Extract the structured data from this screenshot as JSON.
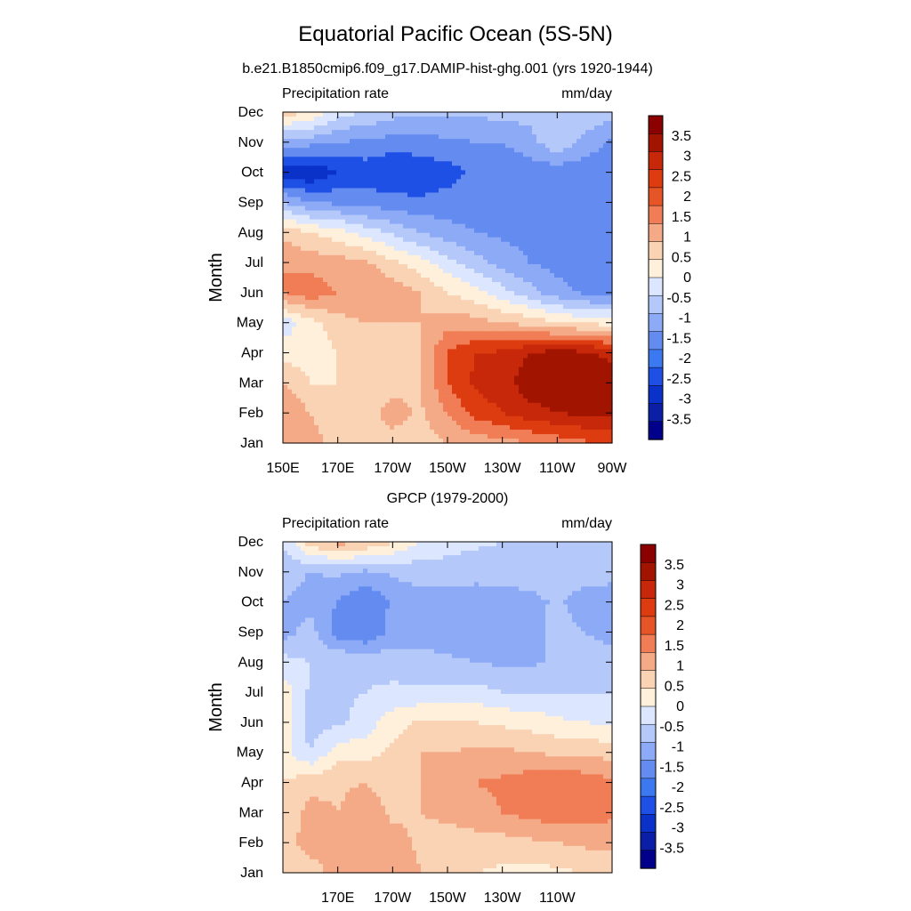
{
  "figure": {
    "title": "Equatorial Pacific Ocean (5S-5N)"
  },
  "chart_data": [
    {
      "type": "heatmap",
      "title": "b.e21.B1850cmip6.f09_g17.DAMIP-hist-ghg.001 (yrs 1920-1944)",
      "left_label": "Precipitation rate",
      "right_label": "mm/day",
      "xlabel": "",
      "ylabel": "Month",
      "x_tick_labels": [
        "150E",
        "170E",
        "170W",
        "150W",
        "130W",
        "110W",
        "90W"
      ],
      "x_values": [
        150,
        170,
        190,
        210,
        230,
        250,
        270
      ],
      "xlim": [
        150,
        270
      ],
      "y_tick_labels": [
        "Jan",
        "Feb",
        "Mar",
        "Apr",
        "May",
        "Jun",
        "Jul",
        "Aug",
        "Sep",
        "Oct",
        "Nov",
        "Dec"
      ],
      "ylim": [
        1,
        12
      ],
      "colorbar": {
        "levels": [
          -3.5,
          -3,
          -2.5,
          -2,
          -1.5,
          -1,
          -0.5,
          0,
          0.5,
          1,
          1.5,
          2,
          2.5,
          3,
          3.5
        ],
        "labels": [
          "3.5",
          "3",
          "2.5",
          "2",
          "1.5",
          "1",
          "0.5",
          "0",
          "-0.5",
          "-1",
          "-1.5",
          "-2",
          "-2.5",
          "-3",
          "-3.5"
        ]
      },
      "z": [
        [
          1.3,
          1.2,
          0.8,
          0.7,
          0.8,
          0.8,
          1.0,
          1.2,
          1.3,
          1.5,
          1.7,
          1.9,
          2.0
        ],
        [
          1.5,
          1.0,
          0.7,
          0.8,
          1.2,
          0.9,
          1.5,
          2.2,
          2.5,
          2.8,
          3.0,
          3.1,
          3.2
        ],
        [
          1.0,
          0.5,
          0.5,
          0.6,
          0.8,
          1.0,
          2.0,
          2.6,
          2.8,
          3.3,
          3.4,
          3.5,
          3.4
        ],
        [
          0.3,
          0.2,
          0.5,
          0.6,
          0.8,
          1.0,
          2.0,
          2.5,
          2.6,
          3.0,
          3.2,
          3.1,
          2.8
        ],
        [
          -0.3,
          0.3,
          0.8,
          1.0,
          1.0,
          1.0,
          1.3,
          1.2,
          1.0,
          0.8,
          0.5,
          0.4,
          0.3
        ],
        [
          1.5,
          1.8,
          1.5,
          1.5,
          1.3,
          1.0,
          0.5,
          0.2,
          -0.3,
          -0.8,
          -1.3,
          -1.6,
          -1.8
        ],
        [
          1.5,
          1.3,
          1.2,
          1.1,
          0.6,
          0.2,
          -0.3,
          -0.8,
          -1.2,
          -1.5,
          -1.7,
          -1.8,
          -1.8
        ],
        [
          0.8,
          0.5,
          0.2,
          -0.2,
          -0.6,
          -1.0,
          -1.3,
          -1.5,
          -1.6,
          -1.7,
          -1.7,
          -1.8,
          -1.7
        ],
        [
          -1.0,
          -1.5,
          -1.6,
          -1.7,
          -1.8,
          -1.9,
          -1.8,
          -1.7,
          -1.7,
          -1.7,
          -1.7,
          -1.7,
          -1.7
        ],
        [
          -2.8,
          -3.0,
          -2.5,
          -2.3,
          -2.5,
          -2.4,
          -2.2,
          -1.9,
          -1.8,
          -1.8,
          -1.8,
          -1.8,
          -1.8
        ],
        [
          -1.2,
          -1.3,
          -1.5,
          -1.6,
          -1.7,
          -1.7,
          -1.6,
          -1.5,
          -1.5,
          -1.2,
          -0.6,
          -1.2,
          -1.6
        ],
        [
          0.8,
          0.5,
          -0.3,
          -0.5,
          -0.8,
          -0.9,
          -0.9,
          -0.9,
          -0.8,
          -0.8,
          -0.5,
          -0.5,
          -0.8
        ]
      ]
    },
    {
      "type": "heatmap",
      "title": "GPCP (1979-2000)",
      "left_label": "Precipitation rate",
      "right_label": "mm/day",
      "xlabel": "",
      "ylabel": "Month",
      "x_tick_labels": [
        "170E",
        "170W",
        "150W",
        "130W",
        "110W"
      ],
      "x_values": [
        170,
        190,
        210,
        230,
        250
      ],
      "xlim": [
        150,
        270
      ],
      "y_tick_labels": [
        "Jan",
        "Feb",
        "Mar",
        "Apr",
        "May",
        "Jun",
        "Jul",
        "Aug",
        "Sep",
        "Oct",
        "Nov",
        "Dec"
      ],
      "ylim": [
        1,
        12
      ],
      "colorbar": {
        "levels": [
          -3.5,
          -3,
          -2.5,
          -2,
          -1.5,
          -1,
          -0.5,
          0,
          0.5,
          1,
          1.5,
          2,
          2.5,
          3,
          3.5
        ],
        "labels": [
          "3.5",
          "3",
          "2.5",
          "2",
          "1.5",
          "1",
          "0.5",
          "0",
          "-0.5",
          "-1",
          "-1.5",
          "-2",
          "-2.5",
          "-3",
          "-3.5"
        ]
      },
      "z": [
        [
          0.7,
          0.8,
          1.2,
          1.5,
          1.5,
          1.0,
          0.6,
          0.5,
          0.4,
          0.3,
          0.4,
          0.5,
          0.6
        ],
        [
          0.8,
          1.2,
          1.0,
          1.4,
          1.2,
          0.9,
          0.8,
          0.8,
          0.8,
          0.9,
          1.0,
          1.1,
          1.2
        ],
        [
          0.6,
          1.2,
          1.0,
          1.3,
          0.9,
          1.0,
          1.1,
          1.3,
          1.5,
          1.7,
          1.8,
          1.8,
          1.6
        ],
        [
          0.5,
          0.8,
          0.9,
          1.0,
          0.8,
          1.0,
          1.3,
          1.5,
          1.6,
          1.8,
          1.9,
          1.8,
          1.6
        ],
        [
          0.2,
          -0.5,
          0.3,
          0.3,
          0.6,
          1.0,
          1.0,
          1.1,
          1.1,
          1.0,
          0.9,
          0.9,
          0.8
        ],
        [
          0.4,
          -0.8,
          -0.6,
          -0.3,
          0.3,
          0.6,
          0.6,
          0.5,
          0.4,
          0.3,
          0.1,
          0.0,
          -0.1
        ],
        [
          0.3,
          -0.6,
          -0.6,
          -0.5,
          -0.4,
          -0.4,
          -0.4,
          -0.3,
          -0.5,
          -0.5,
          -0.5,
          -0.5,
          -0.5
        ],
        [
          -0.3,
          -0.5,
          -0.5,
          -0.6,
          -0.7,
          -0.8,
          -0.9,
          -1.0,
          -1.1,
          -1.1,
          -0.9,
          -0.8,
          -0.9
        ],
        [
          -1.2,
          -0.8,
          -1.8,
          -2.0,
          -1.3,
          -1.2,
          -1.3,
          -1.4,
          -1.4,
          -1.2,
          -0.8,
          -1.0,
          -1.1
        ],
        [
          -1.0,
          -1.2,
          -1.5,
          -2.0,
          -1.4,
          -1.2,
          -1.3,
          -1.3,
          -1.3,
          -1.2,
          -0.9,
          -1.3,
          -1.3
        ],
        [
          -0.8,
          -1.0,
          -0.9,
          -1.1,
          -0.9,
          -0.8,
          -0.7,
          -0.8,
          -0.7,
          -0.7,
          -0.6,
          -0.7,
          -0.8
        ],
        [
          -0.5,
          0.8,
          1.2,
          1.0,
          0.6,
          0.0,
          -0.3,
          -0.4,
          -0.5,
          -0.5,
          -0.5,
          -0.5,
          -0.6
        ]
      ]
    }
  ]
}
